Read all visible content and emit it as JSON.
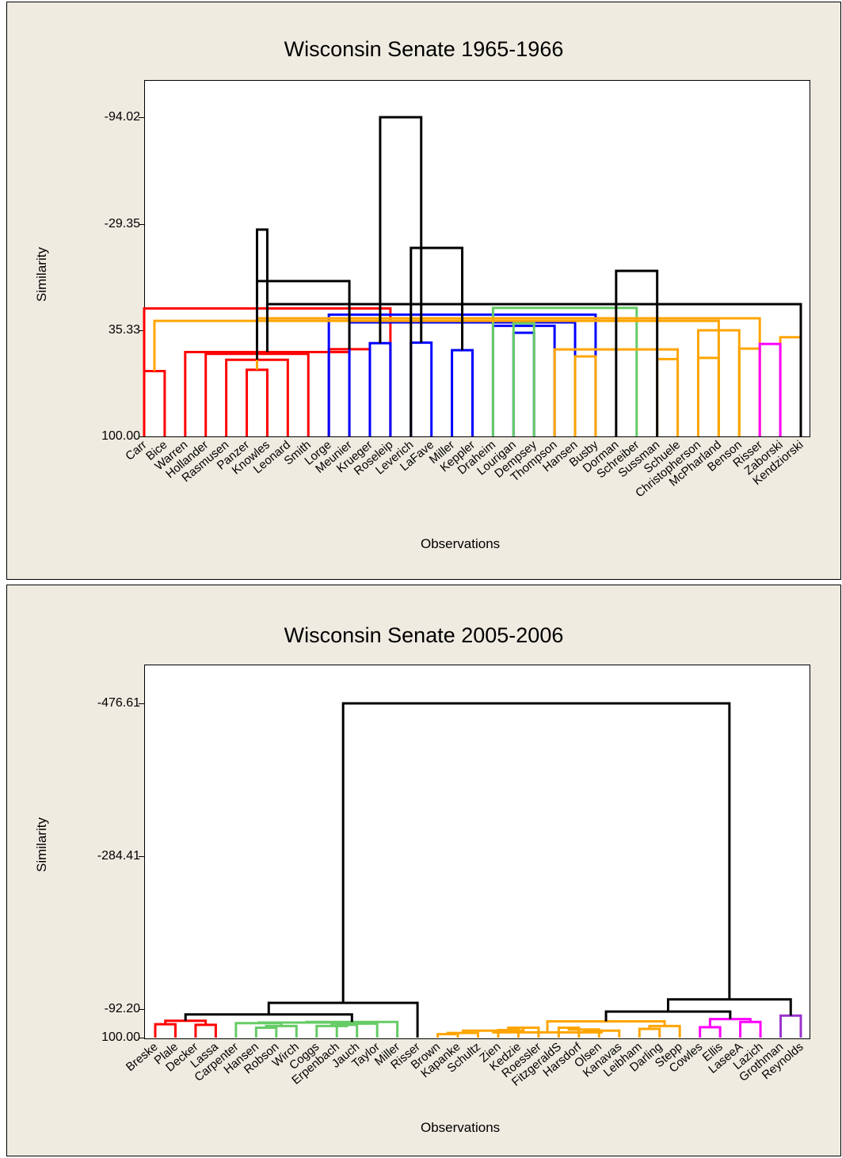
{
  "chart_data": [
    {
      "type": "dendrogram",
      "title": "Wisconsin Senate 1965-1966",
      "xlabel": "Observations",
      "ylabel": "Similarity",
      "yticks": [
        "-94.02",
        "-29.35",
        "35.33",
        "100.00"
      ],
      "ylim": [
        100.0,
        -94.02
      ],
      "observations": [
        "Carr",
        "Bice",
        "Warren",
        "Hollander",
        "Rasmusen",
        "Panzer",
        "Knowles",
        "Leonard",
        "Smith",
        "Lorge",
        "Meunier",
        "Krueger",
        "Roseleip",
        "Leverich",
        "LaFave",
        "Miller",
        "Keppler",
        "Draheim",
        "Lourigan",
        "Dempsey",
        "Thompson",
        "Hansen",
        "Busby",
        "Dorman",
        "Schreiber",
        "Sussman",
        "Schuele",
        "Christopherson",
        "McPharland",
        "Benson",
        "Risser",
        "Zaborski",
        "Kendziorski"
      ],
      "clusters": [
        {
          "color": "#ff0000",
          "members": [
            "Carr",
            "Bice",
            "Warren",
            "Hollander",
            "Rasmusen",
            "Panzer",
            "Knowles",
            "Leonard"
          ]
        },
        {
          "color": "#0000ff",
          "members": [
            "Smith",
            "Lorge",
            "Meunier",
            "Krueger",
            "Roseleip",
            "Leverich",
            "LaFave",
            "Miller",
            "Keppler"
          ]
        },
        {
          "color": "#66cc66",
          "members": [
            "Draheim",
            "Lourigan",
            "Dempsey"
          ]
        },
        {
          "color": "#ffa500",
          "members": [
            "Thompson",
            "Hansen",
            "Busby",
            "Dorman",
            "Schreiber",
            "Sussman",
            "Schuele",
            "Christopherson",
            "McPharland",
            "Benson"
          ]
        },
        {
          "color": "#ff00ff",
          "members": [
            "Risser",
            "Zaborski"
          ]
        },
        {
          "color": "#9933cc",
          "members": [
            "Kendziorski"
          ]
        }
      ],
      "merges": [
        {
          "a": 0,
          "b": 1,
          "h": 60.3,
          "color": "#ff0000"
        },
        {
          "a": 5,
          "b": 6,
          "h": 59.5,
          "color": "#ff0000"
        },
        {
          "a": 7,
          "b": 4,
          "h": 53.4,
          "color": "#ff0000"
        },
        {
          "a": 3,
          "b": 8,
          "h": 49.8,
          "color": "#ff0000"
        },
        {
          "a": 2,
          "b": 10,
          "h": 48.7,
          "color": "#ff0000"
        },
        {
          "a": 9,
          "b": 11,
          "h": 47.0,
          "color": "#ff0000"
        },
        {
          "a": 12,
          "b": 0,
          "h": 22.2,
          "color": "#ff0000"
        },
        {
          "a": 15,
          "b": 16,
          "h": 47.6,
          "color": "#0000ff"
        },
        {
          "a": 11,
          "b": 12,
          "h": 43.3,
          "color": "#0000ff"
        },
        {
          "a": 13,
          "b": 14,
          "h": 43.0,
          "color": "#0000ff"
        },
        {
          "a": 18,
          "b": 19,
          "h": 37.0,
          "color": "#0000ff"
        },
        {
          "a": 17,
          "b": 20,
          "h": 32.8,
          "color": "#0000ff"
        },
        {
          "a": 10,
          "b": 21,
          "h": 30.7,
          "color": "#0000ff"
        },
        {
          "a": 9,
          "b": 22,
          "h": 26.0,
          "color": "#0000ff"
        },
        {
          "a": 18,
          "b": 19,
          "h": 31.2,
          "color": "#66cc66"
        },
        {
          "a": 17,
          "b": 24,
          "h": 21.9,
          "color": "#66cc66"
        },
        {
          "a": 21,
          "b": 22,
          "h": 51.4,
          "color": "#ffa500"
        },
        {
          "a": 25,
          "b": 26,
          "h": 53.0,
          "color": "#ffa500"
        },
        {
          "a": 27,
          "b": 28,
          "h": 52.3,
          "color": "#ffa500"
        },
        {
          "a": 20,
          "b": 26,
          "h": 47.1,
          "color": "#ffa500"
        },
        {
          "a": 29,
          "b": 30,
          "h": 46.6,
          "color": "#ffa500"
        },
        {
          "a": 31,
          "b": 32,
          "h": 39.7,
          "color": "#ffa500"
        },
        {
          "a": 27,
          "b": 29,
          "h": 35.5,
          "color": "#ffa500"
        },
        {
          "a": 28,
          "b": 33,
          "h": 29.8,
          "color": "#ffa500"
        },
        {
          "a": 30,
          "b": 34,
          "h": 28.2,
          "color": "#ffa500"
        },
        {
          "a": 30,
          "b": 31,
          "h": 43.8,
          "color": "#ff00ff"
        },
        {
          "a": 32,
          "b": 37,
          "h": 19.6,
          "color": "#000000"
        },
        {
          "a": 36,
          "b": 38,
          "h": 5.6,
          "color": "#000000"
        },
        {
          "a": 23,
          "b": 25,
          "h": -0.6,
          "color": "#000000"
        },
        {
          "a": 13,
          "b": 40,
          "h": -14.6,
          "color": "#000000"
        },
        {
          "a": 35,
          "b": 39,
          "h": -25.7,
          "color": "#000000"
        },
        {
          "a": 41,
          "b": 42,
          "h": -94.02,
          "color": "#000000"
        }
      ]
    },
    {
      "type": "dendrogram",
      "title": "Wisconsin Senate 2005-2006",
      "xlabel": "Observations",
      "ylabel": "Similarity",
      "yticks": [
        "-476.61",
        "-284.41",
        "-92.20",
        "100.00"
      ],
      "ylim": [
        100.0,
        -476.61
      ],
      "observations": [
        "Breske",
        "Plale",
        "Decker",
        "Lassa",
        "Carpenter",
        "Hansen",
        "Robson",
        "Wirch",
        "Coggs",
        "Erpenbach",
        "Jauch",
        "Taylor",
        "Miller",
        "Risser",
        "Brown",
        "Kapanke",
        "Schultz",
        "Zien",
        "Kedzie",
        "Roessler",
        "FitzgeraldS",
        "Harsdorf",
        "Olsen",
        "Kanavas",
        "Leibham",
        "Darling",
        "Stepp",
        "Cowles",
        "Ellis",
        "LaseeA",
        "Lazich",
        "Grothman",
        "Reynolds"
      ],
      "clusters": [
        {
          "color": "#ff0000",
          "members": [
            "Breske",
            "Plale",
            "Decker",
            "Lassa"
          ]
        },
        {
          "color": "#66cc66",
          "members": [
            "Carpenter",
            "Hansen",
            "Robson",
            "Wirch",
            "Coggs",
            "Erpenbach",
            "Jauch",
            "Taylor",
            "Miller"
          ]
        },
        {
          "color": "#0000ff",
          "members": [
            "Risser"
          ]
        },
        {
          "color": "#ffa500",
          "members": [
            "Brown",
            "Kapanke",
            "Schultz",
            "Zien",
            "Kedzie",
            "Roessler",
            "FitzgeraldS",
            "Harsdorf",
            "Olsen",
            "Kanavas",
            "Leibham",
            "Darling",
            "Stepp"
          ]
        },
        {
          "color": "#ff00ff",
          "members": [
            "Cowles",
            "Ellis",
            "LaseeA",
            "Lazich"
          ]
        },
        {
          "color": "#9933cc",
          "members": [
            "Grothman",
            "Reynolds"
          ]
        }
      ]
    }
  ],
  "top_chart": {
    "title": "Wisconsin Senate 1965-1966",
    "xlabel": "Observations",
    "ylabel": "Similarity",
    "ytick_0": "-94.02",
    "ytick_1": "-29.35",
    "ytick_2": "35.33",
    "ytick_3": "100.00"
  },
  "bottom_chart": {
    "title": "Wisconsin Senate 2005-2006",
    "xlabel": "Observations",
    "ylabel": "Similarity",
    "ytick_0": "-476.61",
    "ytick_1": "-284.41",
    "ytick_2": "-92.20",
    "ytick_3": "100.00"
  }
}
